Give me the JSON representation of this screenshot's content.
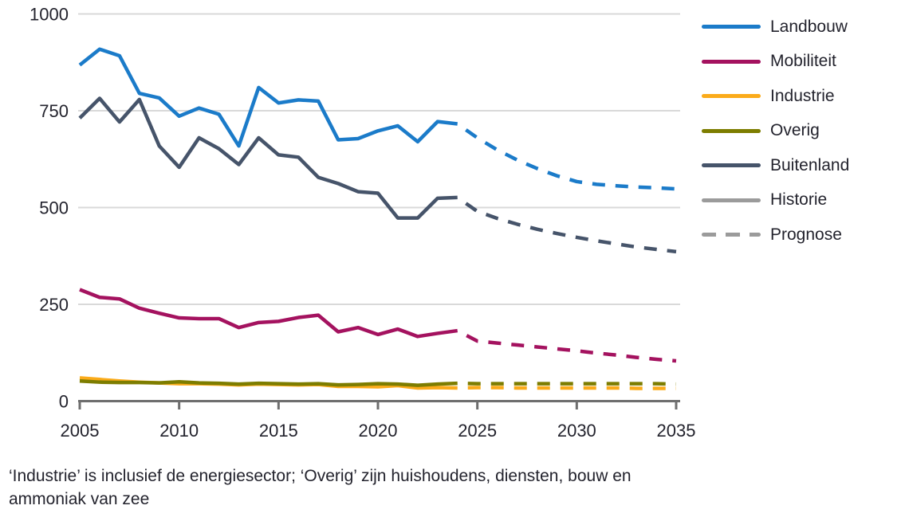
{
  "chart_data": {
    "type": "line",
    "title": "",
    "xlabel": "",
    "ylabel": "",
    "xlim": [
      2005,
      2035
    ],
    "ylim": [
      0,
      1000
    ],
    "x_ticks": [
      2005,
      2010,
      2015,
      2020,
      2025,
      2030,
      2035
    ],
    "y_ticks": [
      0,
      250,
      500,
      750,
      1000
    ],
    "grid": "horizontal",
    "grid_color": "#d9d9d9",
    "axis_color": "#6e6e6e",
    "label_color": "#23232d",
    "legend_position": "top-right",
    "years_historie": [
      2005,
      2006,
      2007,
      2008,
      2009,
      2010,
      2011,
      2012,
      2013,
      2014,
      2015,
      2016,
      2017,
      2018,
      2019,
      2020,
      2021,
      2022,
      2023,
      2024
    ],
    "years_prognose": [
      2024,
      2025,
      2026,
      2027,
      2028,
      2029,
      2030,
      2031,
      2032,
      2033,
      2034,
      2035
    ],
    "series": [
      {
        "name": "Industrie",
        "color": "#FBAB1A",
        "historie": [
          60,
          56,
          52,
          49,
          47,
          45,
          45,
          44,
          42,
          44,
          43,
          42,
          43,
          38,
          38,
          37,
          40,
          34,
          35,
          34
        ],
        "prognose": [
          34,
          35,
          35,
          34,
          34,
          34,
          34,
          34,
          34,
          33,
          33,
          33
        ]
      },
      {
        "name": "Overig",
        "color": "#7D7D00",
        "historie": [
          52,
          49,
          48,
          48,
          47,
          50,
          47,
          46,
          44,
          46,
          45,
          44,
          45,
          42,
          43,
          45,
          44,
          41,
          44,
          46
        ],
        "prognose": [
          46,
          45,
          45,
          45,
          45,
          45,
          45,
          45,
          45,
          45,
          45,
          44
        ]
      },
      {
        "name": "Mobiliteit",
        "color": "#A4125F",
        "historie": [
          288,
          268,
          264,
          240,
          227,
          215,
          213,
          213,
          190,
          203,
          206,
          216,
          222,
          179,
          190,
          172,
          186,
          167,
          175,
          182
        ],
        "prognose": [
          182,
          155,
          150,
          145,
          140,
          135,
          130,
          124,
          119,
          113,
          108,
          104
        ]
      },
      {
        "name": "Buitenland",
        "color": "#46546A",
        "historie": [
          731,
          782,
          721,
          779,
          659,
          604,
          680,
          652,
          611,
          680,
          636,
          630,
          578,
          562,
          541,
          537,
          473,
          473,
          524,
          526
        ],
        "prognose": [
          526,
          490,
          472,
          457,
          444,
          433,
          423,
          414,
          406,
          398,
          392,
          386
        ]
      },
      {
        "name": "Landbouw",
        "color": "#1B7BC9",
        "historie": [
          868,
          909,
          892,
          795,
          783,
          736,
          757,
          741,
          659,
          810,
          770,
          778,
          775,
          675,
          678,
          698,
          711,
          670,
          722,
          716
        ],
        "prognose": [
          716,
          680,
          649,
          623,
          601,
          582,
          567,
          560,
          556,
          553,
          551,
          548
        ]
      }
    ],
    "legend": [
      {
        "label": "Landbouw",
        "color": "#1B7BC9",
        "style": "solid"
      },
      {
        "label": "Mobiliteit",
        "color": "#A4125F",
        "style": "solid"
      },
      {
        "label": "Industrie",
        "color": "#FBAB1A",
        "style": "solid"
      },
      {
        "label": "Overig",
        "color": "#7D7D00",
        "style": "solid"
      },
      {
        "label": "Buitenland",
        "color": "#46546A",
        "style": "solid"
      },
      {
        "label": "Historie",
        "color": "#9B9B9B",
        "style": "solid"
      },
      {
        "label": "Prognose",
        "color": "#9B9B9B",
        "style": "dashed"
      }
    ]
  },
  "footnote": {
    "line1": "‘Industrie’ is inclusief de energiesector; ‘Overig’ zijn huishoudens, diensten, bouw en",
    "line2": "ammoniak van zee"
  }
}
